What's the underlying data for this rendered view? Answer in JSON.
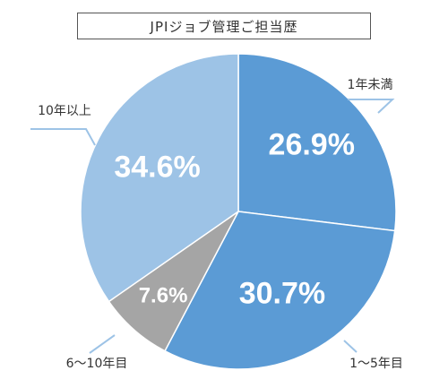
{
  "chart_data": {
    "type": "pie",
    "title": "JPIジョブ管理ご担当歴",
    "categories": [
      "1年未満",
      "1～5年目",
      "6～10年目",
      "10年以上"
    ],
    "values": [
      26.9,
      30.7,
      7.6,
      34.6
    ],
    "value_labels": [
      "26.9%",
      "30.7%",
      "7.6%",
      "34.6%"
    ],
    "colors": [
      "#5b9bd5",
      "#5b9bd5",
      "#a5a5a5",
      "#9dc3e6"
    ],
    "start_angle_deg": 0,
    "direction": "clockwise",
    "legend": "none"
  }
}
